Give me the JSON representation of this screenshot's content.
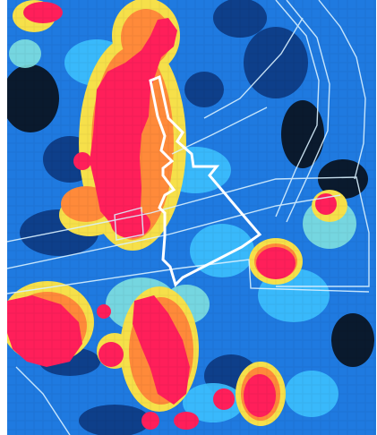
{
  "map": {
    "type": "heatmap-overlay",
    "colormap": [
      "#0a1a2e",
      "#0e3f8a",
      "#1f7ae0",
      "#3cc0ff",
      "#7fe0e0",
      "#f6e04a",
      "#ff8a3a",
      "#ff1f5a"
    ],
    "hotspot_color": "#ff1f5a",
    "boundary_highlight_color": "#ffffff",
    "boundary_outline_color": "#d9f1ff",
    "grid": true
  }
}
